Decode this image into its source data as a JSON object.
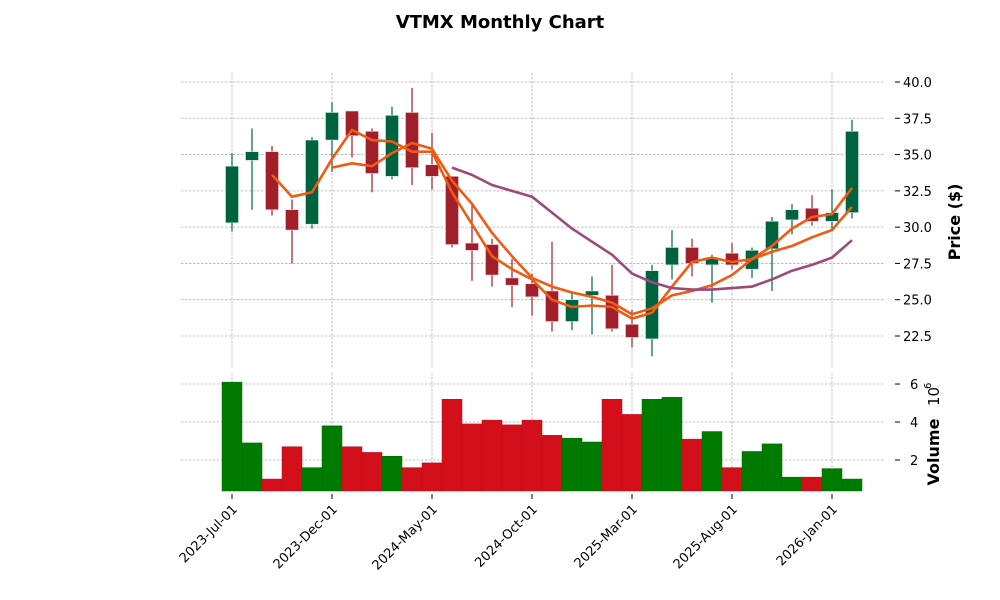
{
  "chart_data": {
    "type": "candlestick",
    "title": "VTMX Monthly Chart",
    "price_axis": {
      "label": "Price ($)",
      "ticks": [
        "22.5",
        "25.0",
        "27.5",
        "30.0",
        "32.5",
        "35.0",
        "37.5",
        "40.0"
      ],
      "tick_values": [
        22.5,
        25.0,
        27.5,
        30.0,
        32.5,
        35.0,
        37.5,
        40.0
      ],
      "ylim": [
        19.9,
        40.6
      ]
    },
    "volume_axis": {
      "label": "Volume",
      "multiplier": "10",
      "exponent": "6",
      "ticks": [
        "2",
        "4",
        "6"
      ],
      "tick_values": [
        2,
        4,
        6
      ],
      "ylim": [
        0.37,
        6.4
      ]
    },
    "x_ticks": [
      {
        "label": "2023-Jul-01",
        "index": 0
      },
      {
        "label": "2023-Dec-01",
        "index": 5
      },
      {
        "label": "2024-May-01",
        "index": 10
      },
      {
        "label": "2024-Oct-01",
        "index": 15
      },
      {
        "label": "2025-Mar-01",
        "index": 20
      },
      {
        "label": "2025-Aug-01",
        "index": 25
      },
      {
        "label": "2026-Jan-01",
        "index": 30
      }
    ],
    "grid": true,
    "colors": {
      "up": "#006340",
      "down": "#a01f2a",
      "vol_up": "#007a00",
      "vol_down": "#d40f1c",
      "ma_short": "#f05a14",
      "ma_mid": "#f05a14",
      "ma_long": "#9c4a7c",
      "grid": "#b0b0b0"
    },
    "candles": [
      {
        "date": "2023-07",
        "open": 30.3,
        "high": 35.1,
        "low": 29.7,
        "close": 34.2,
        "volume": 6.1
      },
      {
        "date": "2023-08",
        "open": 34.6,
        "high": 36.8,
        "low": 31.2,
        "close": 35.2,
        "volume": 2.9
      },
      {
        "date": "2023-09",
        "open": 35.2,
        "high": 35.6,
        "low": 30.8,
        "close": 31.2,
        "volume": 1.0
      },
      {
        "date": "2023-10",
        "open": 31.2,
        "high": 31.9,
        "low": 27.5,
        "close": 29.8,
        "volume": 2.7
      },
      {
        "date": "2023-11",
        "open": 30.2,
        "high": 36.2,
        "low": 29.9,
        "close": 36.0,
        "volume": 1.6
      },
      {
        "date": "2023-12",
        "open": 36.0,
        "high": 38.6,
        "low": 33.8,
        "close": 37.9,
        "volume": 3.8
      },
      {
        "date": "2024-01",
        "open": 38.0,
        "high": 38.0,
        "low": 34.8,
        "close": 36.3,
        "volume": 2.7
      },
      {
        "date": "2024-02",
        "open": 36.6,
        "high": 36.8,
        "low": 32.4,
        "close": 33.7,
        "volume": 2.4
      },
      {
        "date": "2024-03",
        "open": 33.5,
        "high": 38.3,
        "low": 33.3,
        "close": 37.7,
        "volume": 2.2
      },
      {
        "date": "2024-04",
        "open": 37.9,
        "high": 39.6,
        "low": 32.9,
        "close": 34.1,
        "volume": 1.6
      },
      {
        "date": "2024-05",
        "open": 34.3,
        "high": 36.5,
        "low": 32.6,
        "close": 33.5,
        "volume": 1.85
      },
      {
        "date": "2024-06",
        "open": 33.5,
        "high": 33.5,
        "low": 28.6,
        "close": 28.8,
        "volume": 5.2
      },
      {
        "date": "2024-07",
        "open": 28.9,
        "high": 31.6,
        "low": 26.3,
        "close": 28.4,
        "volume": 3.9
      },
      {
        "date": "2024-08",
        "open": 28.8,
        "high": 29.2,
        "low": 25.9,
        "close": 26.7,
        "volume": 4.1
      },
      {
        "date": "2024-09",
        "open": 26.5,
        "high": 27.8,
        "low": 24.5,
        "close": 26.0,
        "volume": 3.85
      },
      {
        "date": "2024-10",
        "open": 26.1,
        "high": 26.8,
        "low": 23.9,
        "close": 25.2,
        "volume": 4.1
      },
      {
        "date": "2024-11",
        "open": 25.6,
        "high": 29.0,
        "low": 22.8,
        "close": 23.5,
        "volume": 3.3
      },
      {
        "date": "2024-12",
        "open": 23.5,
        "high": 25.5,
        "low": 22.9,
        "close": 25.0,
        "volume": 3.15
      },
      {
        "date": "2025-01",
        "open": 25.3,
        "high": 26.6,
        "low": 22.6,
        "close": 25.6,
        "volume": 2.95
      },
      {
        "date": "2025-02",
        "open": 25.3,
        "high": 27.4,
        "low": 22.8,
        "close": 23.0,
        "volume": 5.2
      },
      {
        "date": "2025-03",
        "open": 23.3,
        "high": 24.3,
        "low": 21.7,
        "close": 22.4,
        "volume": 4.4
      },
      {
        "date": "2025-04",
        "open": 22.3,
        "high": 27.4,
        "low": 21.1,
        "close": 27.0,
        "volume": 5.2
      },
      {
        "date": "2025-05",
        "open": 27.4,
        "high": 29.8,
        "low": 26.4,
        "close": 28.6,
        "volume": 5.3
      },
      {
        "date": "2025-06",
        "open": 28.6,
        "high": 29.2,
        "low": 26.6,
        "close": 27.5,
        "volume": 3.1
      },
      {
        "date": "2025-07",
        "open": 27.4,
        "high": 28.1,
        "low": 24.8,
        "close": 27.9,
        "volume": 3.5
      },
      {
        "date": "2025-08",
        "open": 28.2,
        "high": 28.9,
        "low": 27.1,
        "close": 27.4,
        "volume": 1.6
      },
      {
        "date": "2025-09",
        "open": 27.1,
        "high": 28.6,
        "low": 26.5,
        "close": 28.4,
        "volume": 2.45
      },
      {
        "date": "2025-10",
        "open": 28.5,
        "high": 30.7,
        "low": 25.6,
        "close": 30.4,
        "volume": 2.85
      },
      {
        "date": "2025-11",
        "open": 30.5,
        "high": 31.6,
        "low": 29.5,
        "close": 31.2,
        "volume": 1.1
      },
      {
        "date": "2025-12",
        "open": 31.3,
        "high": 32.2,
        "low": 30.1,
        "close": 30.4,
        "volume": 1.1
      },
      {
        "date": "2026-01",
        "open": 30.4,
        "high": 32.6,
        "low": 29.9,
        "close": 31.0,
        "volume": 1.55
      },
      {
        "date": "2026-02",
        "open": 31.0,
        "high": 37.4,
        "low": 30.6,
        "close": 36.6,
        "volume": 1.0
      }
    ],
    "moving_averages": [
      {
        "name": "ma-short",
        "start_index": 2,
        "values": [
          33.6,
          32.1,
          32.4,
          34.7,
          36.7,
          36.0,
          35.9,
          35.2,
          35.2,
          32.4,
          30.2,
          28.0,
          27.1,
          26.4,
          25.0,
          24.5,
          24.6,
          24.5,
          23.7,
          24.1,
          25.9,
          27.6,
          27.9,
          27.6,
          27.8,
          28.7,
          29.9,
          30.7,
          30.9,
          32.7
        ]
      },
      {
        "name": "ma-mid",
        "start_index": 5,
        "values": [
          34.1,
          34.4,
          34.2,
          35.1,
          35.8,
          35.4,
          33.2,
          31.6,
          29.6,
          28.0,
          26.5,
          25.9,
          25.5,
          25.2,
          24.8,
          24.0,
          24.4,
          25.3,
          25.6,
          26.0,
          26.7,
          27.8,
          28.3,
          28.7,
          29.3,
          29.8,
          31.4
        ]
      },
      {
        "name": "ma-long",
        "start_index": 11,
        "values": [
          34.1,
          33.6,
          32.9,
          32.5,
          32.1,
          31.0,
          29.9,
          29.0,
          28.1,
          26.8,
          26.2,
          25.8,
          25.7,
          25.7,
          25.8,
          25.9,
          26.4,
          27.0,
          27.4,
          27.9,
          29.1
        ]
      }
    ]
  }
}
